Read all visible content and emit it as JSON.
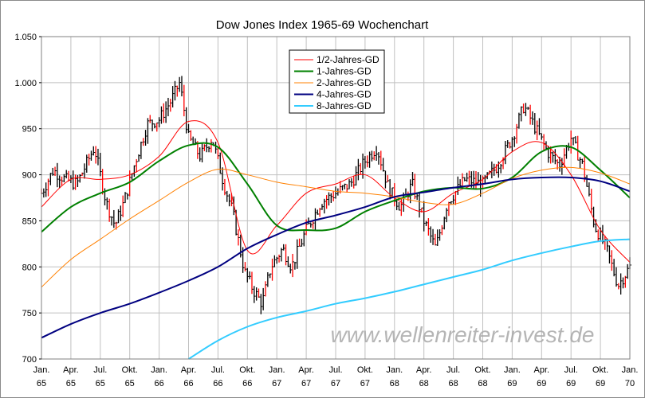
{
  "chart_data": {
    "type": "line",
    "title": "Dow Jones Index 1965-69 Wochenchart",
    "watermark": "www.wellenreiter-invest.de",
    "ylim": [
      700,
      1050
    ],
    "y_ticks": [
      "700",
      "750",
      "800",
      "850",
      "900",
      "950",
      "1.000",
      "1.050"
    ],
    "x_ticks": [
      {
        "month": "Jan.",
        "year": "65"
      },
      {
        "month": "Apr.",
        "year": "65"
      },
      {
        "month": "Jul.",
        "year": "65"
      },
      {
        "month": "Okt.",
        "year": "65"
      },
      {
        "month": "Jan.",
        "year": "66"
      },
      {
        "month": "Apr.",
        "year": "66"
      },
      {
        "month": "Jul.",
        "year": "66"
      },
      {
        "month": "Okt.",
        "year": "66"
      },
      {
        "month": "Jan.",
        "year": "67"
      },
      {
        "month": "Apr.",
        "year": "67"
      },
      {
        "month": "Jul.",
        "year": "67"
      },
      {
        "month": "Okt.",
        "year": "67"
      },
      {
        "month": "Jan.",
        "year": "68"
      },
      {
        "month": "Apr.",
        "year": "68"
      },
      {
        "month": "Jul.",
        "year": "68"
      },
      {
        "month": "Okt.",
        "year": "68"
      },
      {
        "month": "Jan.",
        "year": "69"
      },
      {
        "month": "Apr.",
        "year": "69"
      },
      {
        "month": "Jul.",
        "year": "69"
      },
      {
        "month": "Okt.",
        "year": "69"
      },
      {
        "month": "Jan.",
        "year": "70"
      }
    ],
    "x_range": [
      0,
      20
    ],
    "grid": true,
    "legend_position": "top-center",
    "colors": {
      "bar": "#000000",
      "bar_highlight": "#ff0000",
      "grid": "#c0c0c0",
      "axis": "#000000"
    },
    "price_anchors": [
      [
        0,
        880
      ],
      [
        0.4,
        905
      ],
      [
        0.8,
        895
      ],
      [
        1.2,
        890
      ],
      [
        1.8,
        930
      ],
      [
        2.2,
        870
      ],
      [
        2.5,
        845
      ],
      [
        2.8,
        870
      ],
      [
        3.2,
        915
      ],
      [
        3.6,
        955
      ],
      [
        4.0,
        960
      ],
      [
        4.4,
        980
      ],
      [
        4.7,
        1000
      ],
      [
        5.0,
        940
      ],
      [
        5.4,
        920
      ],
      [
        5.8,
        940
      ],
      [
        6.2,
        890
      ],
      [
        6.5,
        860
      ],
      [
        6.9,
        795
      ],
      [
        7.2,
        775
      ],
      [
        7.5,
        760
      ],
      [
        7.8,
        800
      ],
      [
        8.2,
        820
      ],
      [
        8.5,
        800
      ],
      [
        9.0,
        840
      ],
      [
        9.5,
        870
      ],
      [
        10.0,
        880
      ],
      [
        10.5,
        890
      ],
      [
        11.0,
        915
      ],
      [
        11.4,
        930
      ],
      [
        11.8,
        885
      ],
      [
        12.2,
        865
      ],
      [
        12.6,
        890
      ],
      [
        13.0,
        850
      ],
      [
        13.4,
        820
      ],
      [
        13.8,
        870
      ],
      [
        14.4,
        895
      ],
      [
        15.0,
        890
      ],
      [
        15.5,
        910
      ],
      [
        16.0,
        940
      ],
      [
        16.4,
        975
      ],
      [
        16.8,
        950
      ],
      [
        17.2,
        925
      ],
      [
        17.6,
        910
      ],
      [
        18.0,
        940
      ],
      [
        18.4,
        910
      ],
      [
        18.8,
        845
      ],
      [
        19.2,
        820
      ],
      [
        19.6,
        780
      ],
      [
        20.0,
        800
      ]
    ],
    "series": [
      {
        "name": "1/2-Jahres-GD",
        "color": "#ff0000",
        "width": 1,
        "x": [
          0,
          1,
          2,
          3,
          4,
          5,
          6,
          7,
          8,
          9,
          10,
          11,
          12,
          13,
          14,
          15,
          16,
          17,
          18,
          19,
          20
        ],
        "values": [
          865,
          895,
          895,
          900,
          920,
          958,
          935,
          818,
          845,
          880,
          890,
          900,
          875,
          860,
          880,
          895,
          925,
          935,
          900,
          840,
          805
        ]
      },
      {
        "name": "1-Jahres-GD",
        "color": "#008000",
        "width": 2,
        "x": [
          0,
          1,
          2,
          3,
          4,
          5,
          6,
          7,
          8,
          9,
          10,
          11,
          12,
          13,
          14,
          15,
          16,
          17,
          18,
          19,
          20
        ],
        "values": [
          838,
          865,
          880,
          892,
          915,
          932,
          930,
          890,
          845,
          840,
          842,
          860,
          872,
          882,
          886,
          885,
          897,
          925,
          930,
          905,
          875
        ]
      },
      {
        "name": "2-Jahres-GD",
        "color": "#ff8000",
        "width": 1,
        "x": [
          0,
          1,
          2,
          3,
          4,
          5,
          6,
          7,
          8,
          9,
          10,
          11,
          12,
          13,
          14,
          15,
          16,
          17,
          18,
          19,
          20
        ],
        "values": [
          778,
          808,
          830,
          852,
          872,
          892,
          906,
          900,
          892,
          887,
          882,
          880,
          876,
          870,
          868,
          880,
          896,
          905,
          908,
          902,
          890
        ]
      },
      {
        "name": "4-Jahres-GD",
        "color": "#000080",
        "width": 2,
        "x": [
          0,
          1,
          2,
          3,
          4,
          5,
          6,
          7,
          8,
          9,
          10,
          11,
          12,
          13,
          14,
          15,
          16,
          17,
          18,
          19,
          20
        ],
        "values": [
          723,
          738,
          750,
          760,
          772,
          785,
          800,
          820,
          835,
          848,
          856,
          865,
          876,
          881,
          886,
          890,
          895,
          897,
          897,
          893,
          882
        ]
      },
      {
        "name": "8-Jahres-GD",
        "color": "#33ccff",
        "width": 2,
        "x": [
          5,
          6,
          7,
          8,
          9,
          10,
          11,
          12,
          13,
          14,
          15,
          16,
          17,
          18,
          19,
          20
        ],
        "values": [
          700,
          720,
          735,
          745,
          752,
          760,
          766,
          773,
          781,
          789,
          797,
          807,
          815,
          822,
          828,
          830
        ]
      }
    ]
  }
}
